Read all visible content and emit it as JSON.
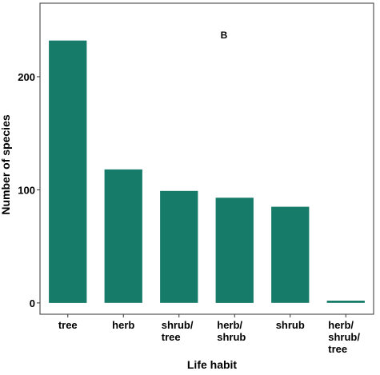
{
  "chart_data": {
    "type": "bar",
    "panel_label": "B",
    "categories": [
      [
        "tree"
      ],
      [
        "herb"
      ],
      [
        "shrub/",
        "tree"
      ],
      [
        "herb/",
        "shrub"
      ],
      [
        "shrub"
      ],
      [
        "herb/",
        "shrub/",
        "tree"
      ]
    ],
    "values": [
      232,
      118,
      99,
      93,
      85,
      2
    ],
    "xlabel": "Life habit",
    "ylabel": "Number of species",
    "ylim": [
      -10,
      265
    ],
    "yticks": [
      0,
      100,
      200
    ],
    "grid": false,
    "bar_color": "#177B69"
  }
}
